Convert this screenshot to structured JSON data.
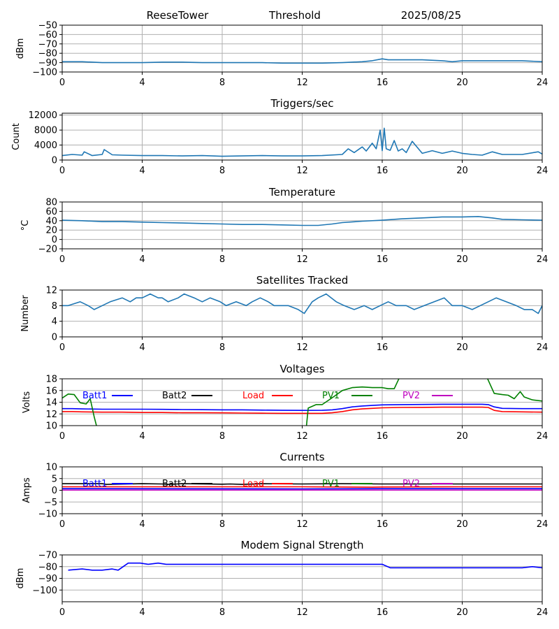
{
  "header": {
    "station": "ReeseTower",
    "panel_title": "Threshold",
    "date": "2025/08/25"
  },
  "x_axis": {
    "ticks": [
      0,
      4,
      8,
      12,
      16,
      20,
      24
    ],
    "xlim": [
      0,
      24
    ]
  },
  "legend_items": [
    {
      "name": "Batt1",
      "color": "#0000ff"
    },
    {
      "name": "Batt2",
      "color": "#000000"
    },
    {
      "name": "Load",
      "color": "#ff0000"
    },
    {
      "name": "PV1",
      "color": "#008000"
    },
    {
      "name": "PV2",
      "color": "#bf00bf"
    }
  ],
  "chart_data": [
    {
      "type": "line",
      "title": "",
      "ylabel": "dBm",
      "ylim": [
        -100,
        -50
      ],
      "yticks": [
        -100,
        -90,
        -80,
        -70,
        -60,
        -50
      ],
      "grid": true,
      "series": [
        {
          "color": "#1f77b4",
          "x": [
            0,
            1,
            2,
            3,
            4,
            5,
            6,
            7,
            8,
            9,
            10,
            11,
            12,
            13,
            14,
            15,
            15.5,
            16,
            16.3,
            17,
            18,
            19,
            19.5,
            20,
            21,
            22,
            23,
            24
          ],
          "y": [
            -89,
            -89,
            -90,
            -90,
            -90,
            -89.5,
            -89.5,
            -90,
            -90,
            -90,
            -90,
            -90.5,
            -90.5,
            -90.5,
            -90,
            -89,
            -88,
            -86,
            -87,
            -87,
            -87,
            -88,
            -89,
            -88,
            -88,
            -88,
            -88,
            -89
          ]
        }
      ]
    },
    {
      "type": "line",
      "title": "Triggers/sec",
      "ylabel": "Count",
      "ylim": [
        0,
        12500
      ],
      "yticks": [
        0,
        4000,
        8000,
        12000
      ],
      "grid": true,
      "series": [
        {
          "color": "#1f77b4",
          "x": [
            0,
            0.5,
            1,
            1.1,
            1.5,
            2,
            2.1,
            2.5,
            3,
            4,
            5,
            6,
            7,
            8,
            9,
            10,
            11,
            12,
            13,
            14,
            14.3,
            14.6,
            15,
            15.2,
            15.5,
            15.7,
            15.9,
            16,
            16.1,
            16.2,
            16.4,
            16.6,
            16.8,
            17,
            17.2,
            17.5,
            18,
            18.5,
            19,
            19.5,
            20,
            20.5,
            21,
            21.5,
            22,
            23,
            23.8,
            24
          ],
          "y": [
            1200,
            1500,
            1300,
            2200,
            1200,
            1500,
            2800,
            1400,
            1300,
            1200,
            1200,
            1100,
            1200,
            1000,
            1100,
            1200,
            1100,
            1100,
            1200,
            1500,
            3000,
            2000,
            3500,
            2400,
            4500,
            3000,
            8000,
            2500,
            8500,
            3000,
            2600,
            5200,
            2400,
            3000,
            2000,
            5000,
            1800,
            2500,
            1800,
            2400,
            1800,
            1500,
            1300,
            2200,
            1500,
            1500,
            2200,
            1600
          ]
        }
      ]
    },
    {
      "type": "line",
      "title": "Temperature",
      "ylabel": "°C",
      "ylim": [
        -20,
        80
      ],
      "yticks": [
        -20,
        0,
        20,
        40,
        60,
        80
      ],
      "grid": true,
      "series": [
        {
          "color": "#1f77b4",
          "x": [
            0,
            1,
            2,
            3,
            4,
            5,
            6,
            7,
            8,
            9,
            10,
            11,
            12,
            12.8,
            13.5,
            14,
            15,
            16,
            17,
            18,
            19,
            19.5,
            20,
            20.8,
            21.5,
            22,
            23,
            24
          ],
          "y": [
            41,
            40,
            38,
            38,
            37,
            36,
            35,
            34,
            33,
            32,
            32,
            31,
            30,
            30,
            33,
            36,
            39,
            41,
            44,
            46,
            48,
            48,
            48,
            49,
            46,
            43,
            42,
            41
          ]
        }
      ]
    },
    {
      "type": "line",
      "title": "Satellites Tracked",
      "ylabel": "Number",
      "ylim": [
        0,
        12
      ],
      "yticks": [
        0,
        4,
        8,
        12
      ],
      "grid": true,
      "series": [
        {
          "color": "#1f77b4",
          "x": [
            0,
            0.3,
            0.9,
            1.3,
            1.6,
            2,
            2.4,
            3,
            3.4,
            3.7,
            4,
            4.4,
            4.8,
            5,
            5.3,
            5.8,
            6.1,
            6.6,
            7,
            7.4,
            7.9,
            8.2,
            8.7,
            9.2,
            9.5,
            9.9,
            10.3,
            10.6,
            11,
            11.3,
            11.8,
            12.1,
            12.5,
            12.8,
            13.2,
            13.7,
            14.1,
            14.6,
            15.1,
            15.5,
            15.9,
            16.3,
            16.7,
            17.2,
            17.6,
            18.1,
            18.6,
            19.1,
            19.5,
            20,
            20.5,
            20.9,
            21.3,
            21.7,
            22.2,
            22.7,
            23.1,
            23.5,
            23.8,
            24
          ],
          "y": [
            8,
            8,
            9,
            8,
            7,
            8,
            9,
            10,
            9,
            10,
            10,
            11,
            10,
            10,
            9,
            10,
            11,
            10,
            9,
            10,
            9,
            8,
            9,
            8,
            9,
            10,
            9,
            8,
            8,
            8,
            7,
            6,
            9,
            10,
            11,
            9,
            8,
            7,
            8,
            7,
            8,
            9,
            8,
            8,
            7,
            8,
            9,
            10,
            8,
            8,
            7,
            8,
            9,
            10,
            9,
            8,
            7,
            7,
            6,
            8
          ]
        }
      ]
    },
    {
      "type": "line",
      "title": "Voltages",
      "ylabel": "Volts",
      "ylim": [
        10,
        18
      ],
      "yticks": [
        10,
        12,
        14,
        16,
        18
      ],
      "grid": true,
      "legend": "top",
      "series": [
        {
          "name": "Batt1",
          "color": "#0000ff",
          "x": [
            0,
            0.5,
            1,
            2,
            3,
            4,
            5,
            6,
            7,
            8,
            9,
            10,
            11,
            12,
            13,
            13.5,
            14,
            14.5,
            15,
            15.5,
            16,
            17,
            18,
            19,
            20,
            21,
            21.3,
            21.6,
            22,
            23,
            24
          ],
          "y": [
            12.9,
            12.9,
            12.85,
            12.8,
            12.8,
            12.8,
            12.78,
            12.75,
            12.72,
            12.7,
            12.7,
            12.65,
            12.62,
            12.6,
            12.62,
            12.7,
            12.9,
            13.2,
            13.35,
            13.45,
            13.55,
            13.6,
            13.62,
            13.65,
            13.65,
            13.65,
            13.6,
            13.2,
            12.95,
            12.9,
            12.9
          ]
        },
        {
          "name": "Load",
          "color": "#ff0000",
          "x": [
            0,
            0.5,
            1,
            2,
            3,
            4,
            5,
            6,
            7,
            8,
            9,
            10,
            11,
            12,
            13,
            13.5,
            14,
            14.5,
            15,
            15.5,
            16,
            17,
            18,
            19,
            20,
            21,
            21.3,
            21.6,
            22,
            23,
            24
          ],
          "y": [
            12.4,
            12.4,
            12.35,
            12.3,
            12.3,
            12.25,
            12.25,
            12.2,
            12.2,
            12.18,
            12.15,
            12.12,
            12.1,
            12.1,
            12.1,
            12.2,
            12.4,
            12.7,
            12.85,
            12.95,
            13.05,
            13.1,
            13.12,
            13.15,
            13.15,
            13.15,
            13.1,
            12.6,
            12.4,
            12.35,
            12.3
          ]
        },
        {
          "name": "PV1",
          "color": "#008000",
          "x": [
            0,
            0.3,
            0.6,
            0.9,
            1.2,
            1.4,
            1.6,
            1.75
          ],
          "y": [
            14.7,
            15.4,
            15.3,
            13.9,
            13.7,
            14.6,
            11.5,
            9.5
          ]
        },
        {
          "name": "PV1",
          "color": "#008000",
          "x": [
            12.2,
            12.3,
            12.7,
            13,
            13.3,
            13.6,
            14,
            14.5,
            15,
            15.5,
            16,
            16.3,
            16.6,
            16.9
          ],
          "y": [
            9.5,
            13,
            13.6,
            13.6,
            14.3,
            15,
            16,
            16.5,
            16.6,
            16.5,
            16.5,
            16.3,
            16.3,
            18.5
          ]
        },
        {
          "name": "PV1",
          "color": "#008000",
          "x": [
            21.2,
            21.6,
            22,
            22.3,
            22.6,
            22.9,
            23.1,
            23.5,
            24
          ],
          "y": [
            18.5,
            15.5,
            15.3,
            15.2,
            14.6,
            15.8,
            14.9,
            14.4,
            14.2
          ]
        }
      ]
    },
    {
      "type": "line",
      "title": "Currents",
      "ylabel": "Amps",
      "ylim": [
        -10,
        10
      ],
      "yticks": [
        -10,
        -5,
        0,
        5,
        10
      ],
      "grid": true,
      "legend": "top",
      "series": [
        {
          "name": "Batt2",
          "color": "#000000",
          "x": [
            0,
            2,
            2.2,
            4,
            5,
            5.3,
            6,
            8,
            8.4,
            9,
            10,
            12,
            14,
            16,
            18,
            20,
            22,
            24
          ],
          "y": [
            2.8,
            2.8,
            2.5,
            2.8,
            2.7,
            2.5,
            2.8,
            2.6,
            2.7,
            2.5,
            2.8,
            2.7,
            2.8,
            2.7,
            2.7,
            2.7,
            2.7,
            2.7
          ]
        },
        {
          "name": "Load",
          "color": "#ff0000",
          "x": [
            0,
            4,
            8,
            12,
            15.5,
            16,
            20,
            24
          ],
          "y": [
            1.5,
            1.5,
            1.5,
            1.5,
            1.3,
            1.4,
            1.5,
            1.5
          ]
        },
        {
          "name": "Batt1",
          "color": "#0000ff",
          "x": [
            0,
            12,
            16,
            24
          ],
          "y": [
            0.7,
            0.6,
            0.7,
            0.7
          ]
        },
        {
          "name": "PV2",
          "color": "#bf00bf",
          "x": [
            0,
            24
          ],
          "y": [
            0.1,
            0.1
          ]
        }
      ]
    },
    {
      "type": "line",
      "title": "Modem Signal Strength",
      "ylabel": "dBm",
      "ylim": [
        -110,
        -70
      ],
      "yticks": [
        -100,
        -90,
        -80,
        -70
      ],
      "grid": true,
      "series": [
        {
          "color": "#0000ff",
          "x": [
            0.3,
            1,
            1.5,
            2,
            2.5,
            2.8,
            3.3,
            3.9,
            4.3,
            4.8,
            5.2,
            16,
            16.4,
            23,
            23.5,
            24
          ],
          "y": [
            -83,
            -82,
            -83,
            -83,
            -82,
            -83,
            -77,
            -77,
            -78,
            -77,
            -78,
            -78,
            -81,
            -81,
            -80,
            -81
          ]
        }
      ]
    }
  ]
}
